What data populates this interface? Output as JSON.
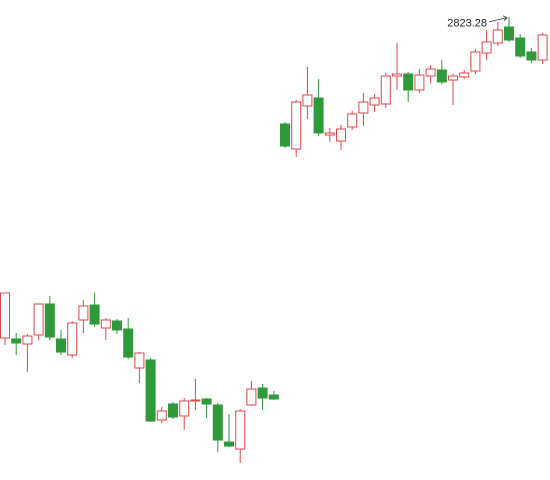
{
  "chart_data": {
    "type": "candlestick",
    "open": [
      2502,
      2501,
      2496,
      2505,
      2536,
      2501,
      2485,
      2520,
      2535,
      2512,
      2519,
      2511,
      2472,
      2480,
      2420,
      2436,
      2424,
      2439,
      2441,
      2435,
      2398,
      2391,
      2435,
      2452,
      2445,
      2716,
      2691,
      2734,
      2742,
      2705,
      2699,
      2713,
      2727,
      2735,
      2736,
      2764,
      2766,
      2750,
      2764,
      2770,
      2760,
      2763,
      2769,
      2787,
      2797,
      2813,
      2802,
      2788,
      2780
    ],
    "high": [
      2547,
      2507,
      2506,
      2536,
      2544,
      2510,
      2519,
      2540,
      2547,
      2522,
      2521,
      2522,
      2488,
      2482,
      2433,
      2438,
      2442,
      2461,
      2442,
      2437,
      2426,
      2431,
      2459,
      2456,
      2449,
      2718,
      2740,
      2773,
      2761,
      2712,
      2715,
      2729,
      2747,
      2746,
      2767,
      2797,
      2768,
      2771,
      2775,
      2780,
      2766,
      2770,
      2791,
      2810,
      2818,
      2823.28,
      2806,
      2792,
      2807
    ],
    "low": [
      2495,
      2485,
      2468,
      2500,
      2500,
      2485,
      2482,
      2507,
      2513,
      2500,
      2506,
      2481,
      2457,
      2418,
      2417,
      2421,
      2410,
      2430,
      2422,
      2388,
      2393,
      2377,
      2434,
      2430,
      2440,
      2692,
      2683,
      2721,
      2704,
      2698,
      2690,
      2710,
      2714,
      2728,
      2732,
      2750,
      2738,
      2747,
      2757,
      2756,
      2735,
      2761,
      2766,
      2780,
      2794,
      2798,
      2782,
      2777,
      2776
    ],
    "close": [
      2547,
      2497,
      2504,
      2536,
      2503,
      2488,
      2517,
      2534,
      2516,
      2520,
      2510,
      2483,
      2487,
      2419,
      2429,
      2423,
      2439,
      2440,
      2436,
      2400,
      2394,
      2429,
      2451,
      2442,
      2441,
      2694,
      2738,
      2745,
      2707,
      2707,
      2711,
      2726,
      2738,
      2742,
      2764,
      2766,
      2750,
      2765,
      2771,
      2758,
      2764,
      2767,
      2788,
      2798,
      2810,
      2800,
      2784,
      2780,
      2805
    ],
    "up_color": "#e0474c",
    "down_color": "#2e9a3a",
    "ylim": [
      2360,
      2840
    ]
  }
}
